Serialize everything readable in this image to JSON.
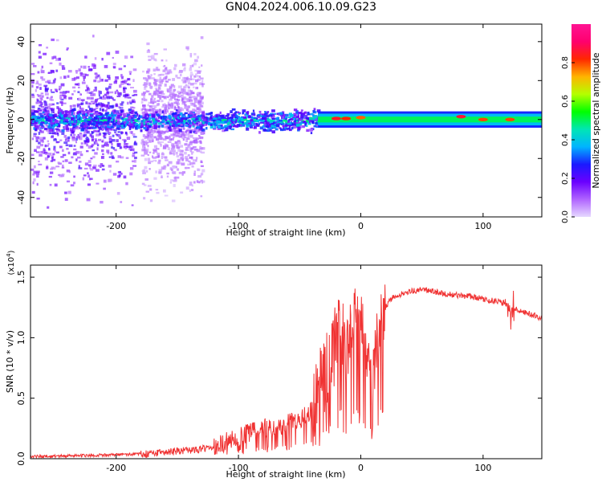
{
  "title": "GN04.2024.006.10.09.G23",
  "colors": {
    "snr_line": "#f03333",
    "axis": "#000000"
  },
  "chart_data": [
    {
      "type": "heatmap",
      "xlabel": "Height of straight line (km)",
      "ylabel": "Frequency (Hz)",
      "xlim": [
        -270,
        148
      ],
      "ylim": [
        -50,
        49
      ],
      "x_ticks": [
        -200,
        -100,
        0,
        100
      ],
      "y_ticks": [
        -40,
        -20,
        0,
        20,
        40
      ],
      "grid": false,
      "colorbar": {
        "label": "Normalized spectral amplitude",
        "range": [
          0,
          1
        ],
        "ticks": [
          "0.0",
          "0.2",
          "0.4",
          "0.6",
          "0.8"
        ],
        "colormap": [
          "#e6d8ff",
          "#b064ff",
          "#6a00ff",
          "#1a1aff",
          "#00b4ff",
          "#00e6b4",
          "#00ff00",
          "#b4ff00",
          "#ffb400",
          "#ff2800",
          "#ff006e",
          "#ff1493"
        ]
      },
      "bands": [
        {
          "x": [
            -270,
            -185
          ],
          "spread": 49,
          "level": 0.18
        },
        {
          "x": [
            -180,
            -130
          ],
          "spread": 49,
          "level": 0.08
        },
        {
          "x": [
            -270,
            -35
          ],
          "spread": 7,
          "level": 0.32
        },
        {
          "x": [
            -35,
            148
          ],
          "spread": 3,
          "level": 0.45
        }
      ],
      "peaks": [
        {
          "x": -20,
          "y": 0.5,
          "value": 0.85
        },
        {
          "x": -12,
          "y": 0.5,
          "value": 0.82
        },
        {
          "x": 0,
          "y": 1,
          "value": 0.78
        },
        {
          "x": 82,
          "y": 1.5,
          "value": 0.86
        },
        {
          "x": 100,
          "y": 0,
          "value": 0.8
        },
        {
          "x": 122,
          "y": 0,
          "value": 0.8
        }
      ]
    },
    {
      "type": "line",
      "xlabel": "Height of straight line (km)",
      "ylabel": "SNR (10 * v/v)",
      "y_multiplier": "(x10",
      "y_multiplier_exp": "4",
      "xlim": [
        -270,
        148
      ],
      "ylim": [
        0,
        1.6
      ],
      "x_ticks": [
        -200,
        -100,
        0,
        100
      ],
      "y_ticks": [
        "0.0",
        "0.5",
        "1.0",
        "1.5"
      ],
      "grid": false,
      "series": [
        {
          "x": [
            -270,
            -250,
            -230,
            -210,
            -190,
            -175,
            -165,
            -150,
            -130,
            -115,
            -100,
            -90,
            -80,
            -70,
            -60,
            -50,
            -40,
            -35,
            -30,
            -25,
            -20,
            -17,
            -15,
            -12,
            -10,
            -5,
            0,
            5,
            10,
            15,
            20,
            25,
            30,
            40,
            50,
            60,
            70,
            80,
            90,
            100,
            110,
            120,
            122,
            125,
            130,
            140,
            148
          ],
          "y": [
            0.02,
            0.02,
            0.025,
            0.03,
            0.035,
            0.04,
            0.05,
            0.06,
            0.08,
            0.12,
            0.18,
            0.22,
            0.25,
            0.27,
            0.29,
            0.32,
            0.4,
            0.55,
            0.7,
            0.75,
            1.0,
            1.3,
            1.1,
            0.8,
            1.0,
            1.15,
            1.25,
            0.75,
            0.7,
            1.1,
            1.25,
            1.32,
            1.35,
            1.38,
            1.4,
            1.38,
            1.36,
            1.35,
            1.34,
            1.32,
            1.3,
            1.28,
            1.2,
            1.25,
            1.22,
            1.19,
            1.16
          ]
        }
      ]
    }
  ]
}
